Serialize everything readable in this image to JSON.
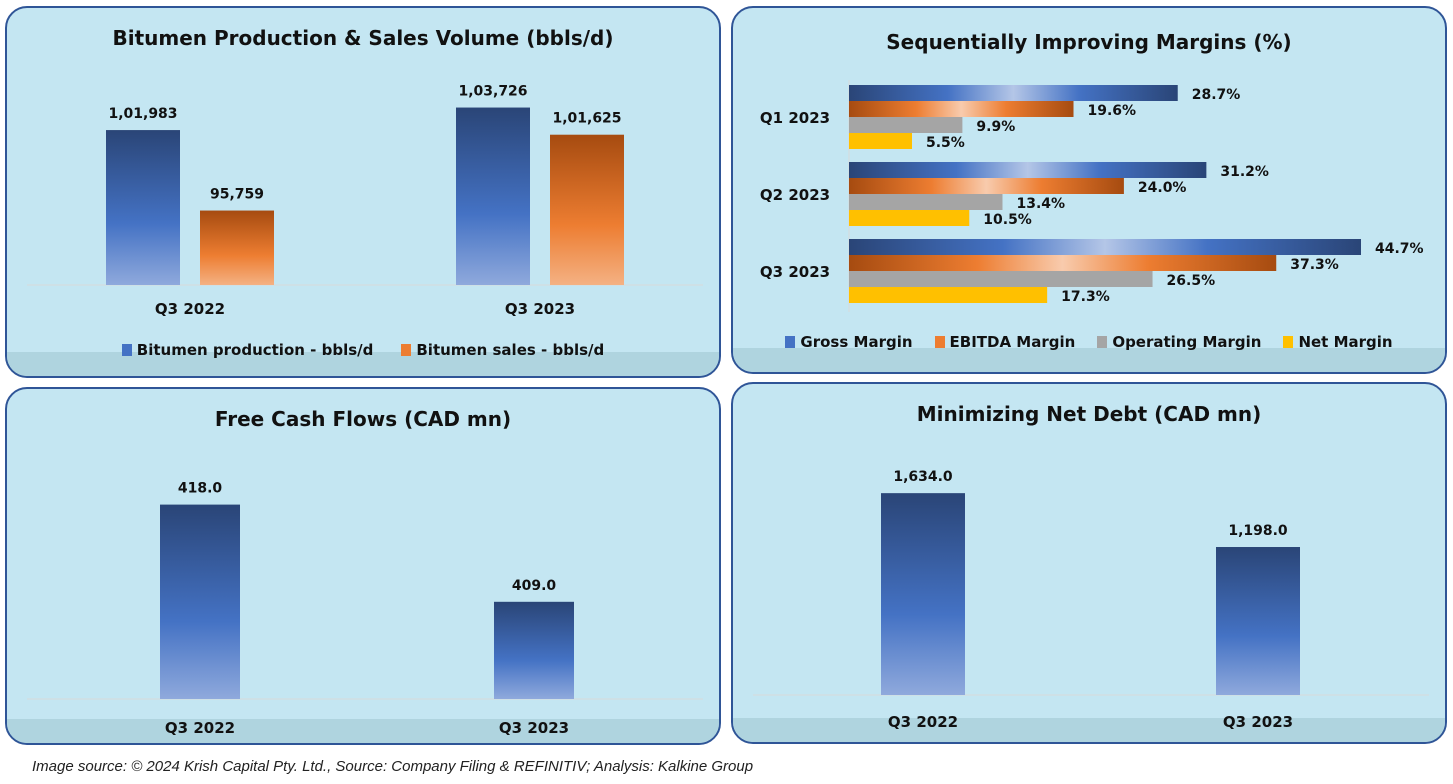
{
  "colors": {
    "panel_bg": "#c4e6f2",
    "panel_border": "#2f5597",
    "blue_dark": "#2a4577",
    "blue_mid": "#4472c4",
    "blue_light": "#8fa9dc",
    "orange_dark": "#a64b10",
    "orange_mid": "#ed7d31",
    "orange_light": "#f7c29e",
    "gray": "#a5a5a5",
    "yellow": "#ffc000"
  },
  "footer": "Image source: © 2024 Krish Capital Pty. Ltd., Source: Company Filing & REFINITIV; Analysis: Kalkine Group",
  "chart_data": [
    {
      "id": "bitumen",
      "type": "bar",
      "title": "Bitumen Production & Sales Volume (bbls/d)",
      "categories": [
        "Q3 2022",
        "Q3 2023"
      ],
      "series": [
        {
          "name": "Bitumen production - bbls/d",
          "values": [
            101983,
            103726
          ],
          "labels": [
            "1,01,983",
            "1,03,726"
          ],
          "color": "blue"
        },
        {
          "name": "Bitumen sales - bbls/d",
          "values": [
            95759,
            101625
          ],
          "labels": [
            "95,759",
            "1,01,625"
          ],
          "color": "orange"
        }
      ],
      "xlabel": "",
      "ylabel": "",
      "ylim": [
        90000,
        104000
      ],
      "grid": false,
      "legend": "bottom"
    },
    {
      "id": "margins",
      "type": "bar",
      "orientation": "horizontal",
      "title": "Sequentially Improving Margins (%)",
      "categories": [
        "Q1 2023",
        "Q2 2023",
        "Q3 2023"
      ],
      "series": [
        {
          "name": "Gross Margin",
          "values": [
            28.7,
            31.2,
            44.7
          ],
          "labels": [
            "28.7%",
            "31.2%",
            "44.7%"
          ],
          "color": "blue"
        },
        {
          "name": "EBITDA Margin",
          "values": [
            19.6,
            24.0,
            37.3
          ],
          "labels": [
            "19.6%",
            "24.0%",
            "37.3%"
          ],
          "color": "orange"
        },
        {
          "name": "Operating Margin",
          "values": [
            9.9,
            13.4,
            26.5
          ],
          "labels": [
            "9.9%",
            "13.4%",
            "26.5%"
          ],
          "color": "gray"
        },
        {
          "name": "Net Margin",
          "values": [
            5.5,
            10.5,
            17.3
          ],
          "labels": [
            "5.5%",
            "10.5%",
            "17.3%"
          ],
          "color": "yellow"
        }
      ],
      "xlabel": "",
      "ylabel": "",
      "xlim": [
        0,
        45
      ],
      "grid": false,
      "legend": "bottom"
    },
    {
      "id": "fcf",
      "type": "bar",
      "title": "Free Cash Flows (CAD mn)",
      "categories": [
        "Q3 2022",
        "Q3 2023"
      ],
      "series": [
        {
          "name": "Free Cash Flows",
          "values": [
            418.0,
            409.0
          ],
          "labels": [
            "418.0",
            "409.0"
          ],
          "color": "blue"
        }
      ],
      "xlabel": "",
      "ylabel": "",
      "ylim": [
        400,
        420
      ],
      "grid": false,
      "legend": "none"
    },
    {
      "id": "netdebt",
      "type": "bar",
      "title": "Minimizing Net Debt (CAD mn)",
      "categories": [
        "Q3 2022",
        "Q3 2023"
      ],
      "series": [
        {
          "name": "Net Debt",
          "values": [
            1634.0,
            1198.0
          ],
          "labels": [
            "1,634.0",
            "1,198.0"
          ],
          "color": "blue"
        }
      ],
      "xlabel": "",
      "ylabel": "",
      "ylim": [
        0,
        1700
      ],
      "grid": false,
      "legend": "none"
    }
  ]
}
